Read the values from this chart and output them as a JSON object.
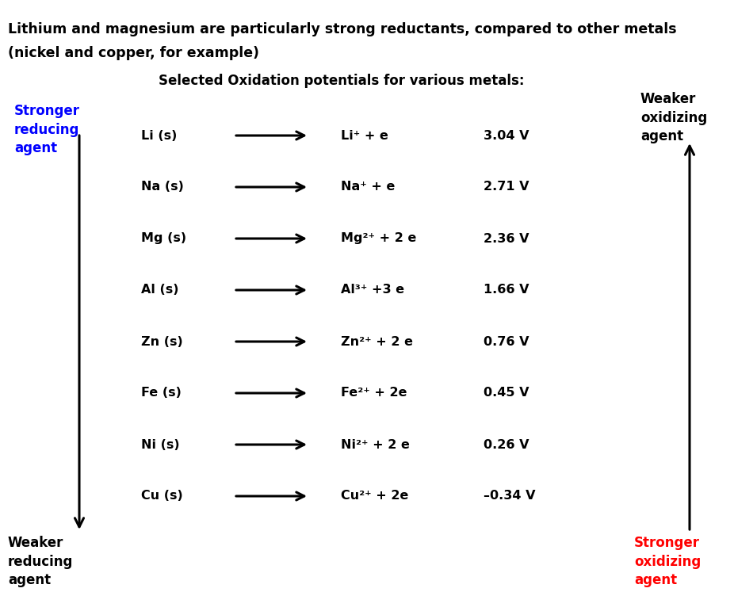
{
  "title_line1": "Lithium and magnesium are particularly strong reductants, compared to other metals",
  "title_line2": "(nickel and copper, for example)",
  "subtitle": "Selected Oxidation potentials for various metals:",
  "bg_color": "#ffffff",
  "rows": [
    {
      "metal": "Li (s)",
      "product": "Li⁺ + e",
      "voltage": "3.04 V"
    },
    {
      "metal": "Na (s)",
      "product": "Na⁺ + e",
      "voltage": "2.71 V"
    },
    {
      "metal": "Mg (s)",
      "product": "Mg²⁺ + 2 e",
      "voltage": "2.36 V"
    },
    {
      "metal": "Al (s)",
      "product": "Al³⁺ +3 e",
      "voltage": "1.66 V"
    },
    {
      "metal": "Zn (s)",
      "product": "Zn²⁺ + 2 e",
      "voltage": "0.76 V"
    },
    {
      "metal": "Fe (s)",
      "product": "Fe²⁺ + 2e",
      "voltage": "0.45 V"
    },
    {
      "metal": "Ni (s)",
      "product": "Ni²⁺ + 2 e",
      "voltage": "0.26 V"
    },
    {
      "metal": "Cu (s)",
      "product": "Cu²⁺ + 2e",
      "voltage": "–0.34 V"
    }
  ],
  "left_label_color": "#0000ff",
  "right_bottom_color": "#ff0000",
  "title_fontsize": 12.5,
  "subtitle_fontsize": 12,
  "row_fontsize": 11.5,
  "label_fontsize": 12
}
